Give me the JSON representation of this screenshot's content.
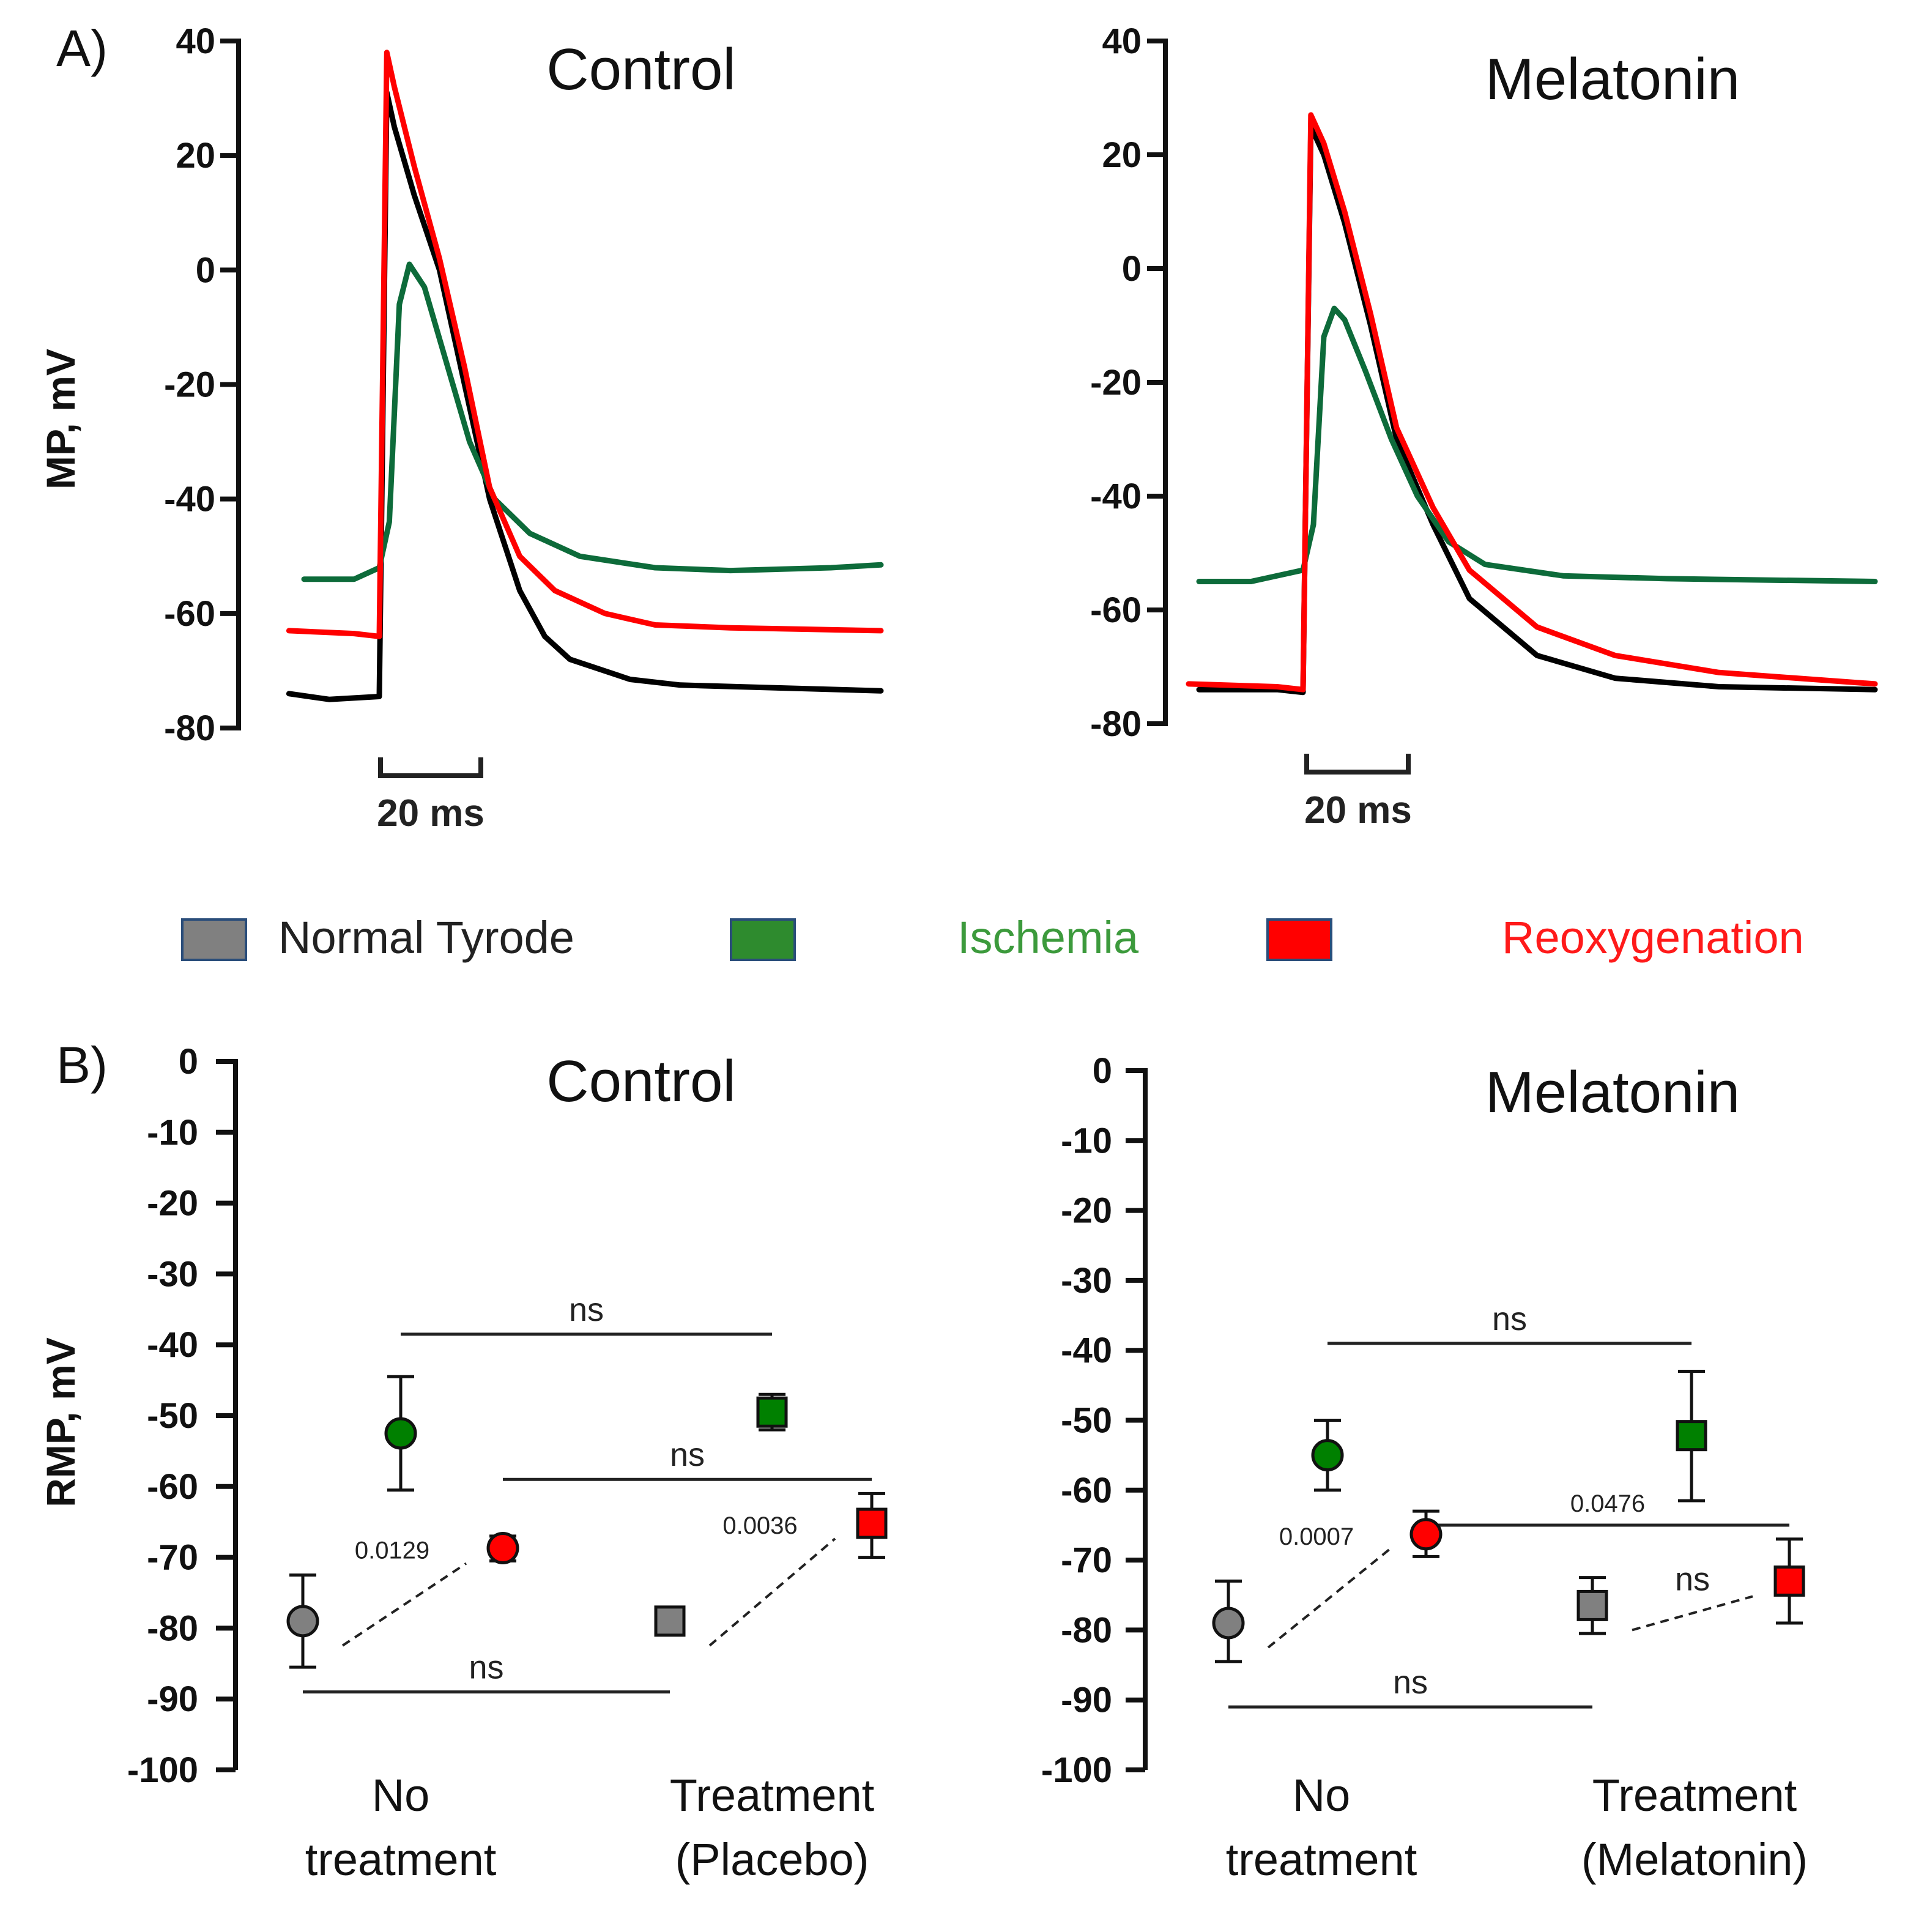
{
  "panels": {
    "A": "A)",
    "B": "B)"
  },
  "legend": [
    {
      "label": "Normal Tyrode",
      "swatch": "#808080",
      "text_color": "#222222"
    },
    {
      "label": "Ischemia",
      "swatch": "#2e8b2e",
      "text_color": "#3c9a3c"
    },
    {
      "label": "Reoxygenation",
      "swatch": "#ff0000",
      "text_color": "#ff1a1a"
    }
  ],
  "colors": {
    "normal": "#000000",
    "normal_marker": "#808080",
    "ischemia": "#0d6b3a",
    "ischemia_marker": "#008000",
    "reox": "#ff0000"
  },
  "chart_data": [
    {
      "type": "line",
      "title": "Control",
      "ylabel": "MP, mV",
      "ylim": [
        -80,
        40
      ],
      "yticks": [
        "40",
        "20",
        "0",
        "-20",
        "-40",
        "-60",
        "-80"
      ],
      "scalebar": "20 ms",
      "time_unit": "ms",
      "series": [
        {
          "name": "Normal Tyrode",
          "color": "#000000",
          "x": [
            -18,
            -10,
            0,
            0.5,
            1.5,
            3,
            7,
            12,
            17,
            22,
            28,
            33,
            38,
            50,
            60,
            80,
            100
          ],
          "y": [
            -74,
            -75,
            -74.5,
            -40,
            31,
            25,
            13,
            0,
            -20,
            -40,
            -56,
            -64,
            -68,
            -71.5,
            -72.5,
            -73,
            -73.5
          ]
        },
        {
          "name": "Ischemia",
          "color": "#0d6b3a",
          "x": [
            -15,
            -5,
            0,
            2,
            4,
            6,
            9,
            13,
            18,
            23,
            30,
            40,
            55,
            70,
            90,
            100
          ],
          "y": [
            -54,
            -54,
            -52,
            -44,
            -6,
            1,
            -3,
            -15,
            -30,
            -40,
            -46,
            -50,
            -52,
            -52.5,
            -52,
            -51.5
          ]
        },
        {
          "name": "Reoxygenation",
          "color": "#ff0000",
          "x": [
            -18,
            -5,
            0,
            0.5,
            1.5,
            3,
            7,
            12,
            17,
            22,
            28,
            35,
            45,
            55,
            70,
            100
          ],
          "y": [
            -63,
            -63.5,
            -64,
            -30,
            38,
            32,
            18,
            2,
            -17,
            -38,
            -50,
            -56,
            -60,
            -62,
            -62.5,
            -63
          ]
        }
      ]
    },
    {
      "type": "line",
      "title": "Melatonin",
      "ylabel": "",
      "ylim": [
        -80,
        40
      ],
      "yticks": [
        "40",
        "20",
        "0",
        "-20",
        "-40",
        "-60",
        "-80"
      ],
      "scalebar": "20 ms",
      "time_unit": "ms",
      "series": [
        {
          "name": "Normal Tyrode",
          "color": "#000000",
          "x": [
            -20,
            -5,
            0,
            0.5,
            1.5,
            4,
            8,
            13,
            18,
            25,
            32,
            45,
            60,
            80,
            110
          ],
          "y": [
            -74,
            -74,
            -74.5,
            -40,
            25,
            20,
            8,
            -10,
            -30,
            -45,
            -58,
            -68,
            -72,
            -73.5,
            -74
          ]
        },
        {
          "name": "Ischemia",
          "color": "#0d6b3a",
          "x": [
            -20,
            -10,
            0,
            2,
            4,
            6,
            8,
            12,
            17,
            22,
            28,
            35,
            50,
            70,
            110
          ],
          "y": [
            -55,
            -55,
            -53,
            -45,
            -12,
            -7,
            -9,
            -18,
            -30,
            -40,
            -48,
            -52,
            -54,
            -54.5,
            -55
          ]
        },
        {
          "name": "Reoxygenation",
          "color": "#ff0000",
          "x": [
            -22,
            -5,
            0,
            0.5,
            1.5,
            4,
            8,
            13,
            18,
            25,
            32,
            45,
            60,
            80,
            110
          ],
          "y": [
            -73,
            -73.5,
            -74,
            -40,
            27,
            22,
            10,
            -8,
            -28,
            -42,
            -53,
            -63,
            -68,
            -71,
            -73
          ]
        }
      ]
    },
    {
      "type": "scatter",
      "title": "Control",
      "ylabel": "RMP, mV",
      "ylim": [
        -100,
        0
      ],
      "yticks": [
        "0",
        "-10",
        "-20",
        "-30",
        "-40",
        "-50",
        "-60",
        "-70",
        "-80",
        "-90",
        "-100"
      ],
      "groups": [
        {
          "line1": "No",
          "line2": "treatment"
        },
        {
          "line1": "Treatment",
          "line2": "(Placebo)"
        }
      ],
      "points": [
        {
          "group": 0,
          "condition": "Normal Tyrode",
          "shape": "circle",
          "mean": -79,
          "err_low": -85.5,
          "err_high": -72.5
        },
        {
          "group": 0,
          "condition": "Ischemia",
          "shape": "circle",
          "mean": -52.5,
          "err_low": -60.5,
          "err_high": -44.5
        },
        {
          "group": 0,
          "condition": "Reoxygenation",
          "shape": "circle",
          "mean": -68.7,
          "err_low": -70.5,
          "err_high": -67
        },
        {
          "group": 1,
          "condition": "Normal Tyrode",
          "shape": "square",
          "mean": -79,
          "err_low": -80.5,
          "err_high": -77.5
        },
        {
          "group": 1,
          "condition": "Ischemia",
          "shape": "square",
          "mean": -49.5,
          "err_low": -52,
          "err_high": -47
        },
        {
          "group": 1,
          "condition": "Reoxygenation",
          "shape": "square",
          "mean": -65.2,
          "err_low": -70,
          "err_high": -61
        }
      ],
      "comparisons": [
        {
          "label": "ns",
          "style": "solid",
          "from": [
            0,
            "Ischemia"
          ],
          "to": [
            1,
            "Ischemia"
          ],
          "y": -38.5
        },
        {
          "label": "ns",
          "style": "solid",
          "from": [
            0,
            "Reoxygenation"
          ],
          "to": [
            1,
            "Reoxygenation"
          ],
          "y": -59
        },
        {
          "label": "ns",
          "style": "solid",
          "from": [
            0,
            "Normal Tyrode"
          ],
          "to": [
            1,
            "Normal Tyrode"
          ],
          "y": -89
        },
        {
          "label": "0.0129",
          "style": "dashed",
          "from": [
            0,
            "Normal Tyrode"
          ],
          "to": [
            0,
            "Reoxygenation"
          ]
        },
        {
          "label": "0.0036",
          "style": "dashed",
          "from": [
            1,
            "Normal Tyrode"
          ],
          "to": [
            1,
            "Reoxygenation"
          ]
        }
      ]
    },
    {
      "type": "scatter",
      "title": "Melatonin",
      "ylabel": "",
      "ylim": [
        -100,
        0
      ],
      "yticks": [
        "0",
        "-10",
        "-20",
        "-30",
        "-40",
        "-50",
        "-60",
        "-70",
        "-80",
        "-90",
        "-100"
      ],
      "groups": [
        {
          "line1": "No",
          "line2": "treatment"
        },
        {
          "line1": "Treatment",
          "line2": "(Melatonin)"
        }
      ],
      "points": [
        {
          "group": 0,
          "condition": "Normal Tyrode",
          "shape": "circle",
          "mean": -79,
          "err_low": -84.5,
          "err_high": -73
        },
        {
          "group": 0,
          "condition": "Ischemia",
          "shape": "circle",
          "mean": -55,
          "err_low": -60,
          "err_high": -50
        },
        {
          "group": 0,
          "condition": "Reoxygenation",
          "shape": "circle",
          "mean": -66.3,
          "err_low": -69.5,
          "err_high": -63
        },
        {
          "group": 1,
          "condition": "Normal Tyrode",
          "shape": "square",
          "mean": -76.5,
          "err_low": -80.5,
          "err_high": -72.5
        },
        {
          "group": 1,
          "condition": "Ischemia",
          "shape": "square",
          "mean": -52.2,
          "err_low": -61.5,
          "err_high": -43
        },
        {
          "group": 1,
          "condition": "Reoxygenation",
          "shape": "square",
          "mean": -73,
          "err_low": -79,
          "err_high": -67
        }
      ],
      "comparisons": [
        {
          "label": "ns",
          "style": "solid",
          "from": [
            0,
            "Ischemia"
          ],
          "to": [
            1,
            "Ischemia"
          ],
          "y": -39
        },
        {
          "label": "0.0476",
          "style": "solid",
          "from": [
            0,
            "Reoxygenation"
          ],
          "to": [
            1,
            "Reoxygenation"
          ],
          "y": -65
        },
        {
          "label": "ns",
          "style": "solid",
          "from": [
            0,
            "Normal Tyrode"
          ],
          "to": [
            1,
            "Normal Tyrode"
          ],
          "y": -91
        },
        {
          "label": "0.0007",
          "style": "dashed",
          "from": [
            0,
            "Normal Tyrode"
          ],
          "to": [
            0,
            "Reoxygenation"
          ]
        },
        {
          "label": "ns",
          "style": "dashed",
          "from": [
            1,
            "Normal Tyrode"
          ],
          "to": [
            1,
            "Reoxygenation"
          ]
        }
      ]
    }
  ]
}
